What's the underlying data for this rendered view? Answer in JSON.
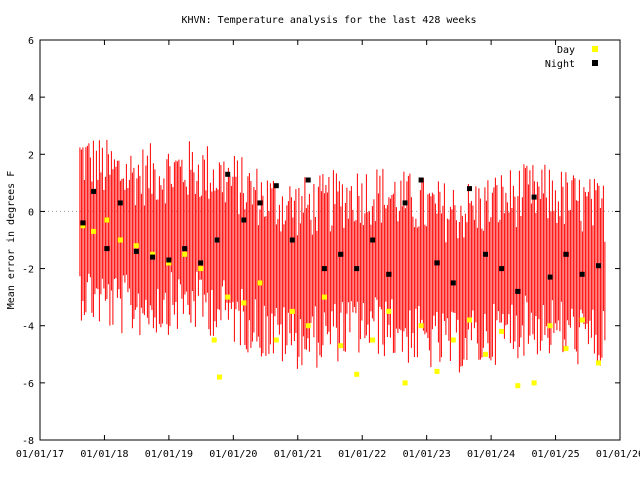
{
  "chart_data": {
    "type": "scatter",
    "title": "KHVN: Temperature analysis for the last 428 weeks",
    "xlabel": "",
    "ylabel": "Mean error in degrees F",
    "ylim": [
      -8,
      6
    ],
    "xlim": [
      "2017-01-01",
      "2026-01-01"
    ],
    "y_ticks": [
      "-8",
      "-6",
      "-4",
      "-2",
      "0",
      "2",
      "4",
      "6"
    ],
    "x_ticks": [
      "01/01/17",
      "01/01/18",
      "01/01/19",
      "01/01/20",
      "01/01/21",
      "01/01/22",
      "01/01/23",
      "01/01/24",
      "01/01/25",
      "01/01/26"
    ],
    "reference_line": {
      "y": 0,
      "style": "dotted",
      "color": "#a0a0a0"
    },
    "legend": {
      "position": "top-right",
      "entries": [
        "Day",
        "Night"
      ]
    },
    "error_bar_color": "#ff0000",
    "series": [
      {
        "name": "Day",
        "color": "#ffff00",
        "marker": "square",
        "points": [
          [
            "2017-09-01",
            -0.5
          ],
          [
            "2017-11-01",
            -0.7
          ],
          [
            "2018-01-15",
            -0.3
          ],
          [
            "2018-04-01",
            -1.0
          ],
          [
            "2018-07-01",
            -1.2
          ],
          [
            "2018-10-01",
            -1.5
          ],
          [
            "2019-01-01",
            -1.8
          ],
          [
            "2019-04-01",
            -1.5
          ],
          [
            "2019-07-01",
            -2.0
          ],
          [
            "2019-09-15",
            -4.5
          ],
          [
            "2019-10-15",
            -5.8
          ],
          [
            "2019-12-01",
            -3.0
          ],
          [
            "2020-03-01",
            -3.2
          ],
          [
            "2020-06-01",
            -2.5
          ],
          [
            "2020-09-01",
            -4.5
          ],
          [
            "2020-12-01",
            -3.5
          ],
          [
            "2021-03-01",
            -4.0
          ],
          [
            "2021-06-01",
            -3.0
          ],
          [
            "2021-09-01",
            -4.7
          ],
          [
            "2021-12-01",
            -5.7
          ],
          [
            "2022-03-01",
            -4.5
          ],
          [
            "2022-06-01",
            -3.5
          ],
          [
            "2022-09-01",
            -6.0
          ],
          [
            "2022-12-01",
            -4.0
          ],
          [
            "2023-03-01",
            -5.6
          ],
          [
            "2023-06-01",
            -4.5
          ],
          [
            "2023-09-01",
            -3.8
          ],
          [
            "2023-12-01",
            -5.0
          ],
          [
            "2024-03-01",
            -4.2
          ],
          [
            "2024-06-01",
            -6.1
          ],
          [
            "2024-09-01",
            -6.0
          ],
          [
            "2024-12-01",
            -4.0
          ],
          [
            "2025-03-01",
            -4.8
          ],
          [
            "2025-06-01",
            -3.8
          ],
          [
            "2025-09-01",
            -5.3
          ]
        ]
      },
      {
        "name": "Night",
        "color": "#000000",
        "marker": "square",
        "points": [
          [
            "2017-09-01",
            -0.4
          ],
          [
            "2017-11-01",
            0.7
          ],
          [
            "2018-01-15",
            -1.3
          ],
          [
            "2018-04-01",
            0.3
          ],
          [
            "2018-07-01",
            -1.4
          ],
          [
            "2018-10-01",
            -1.6
          ],
          [
            "2019-01-01",
            -1.7
          ],
          [
            "2019-04-01",
            -1.3
          ],
          [
            "2019-07-01",
            -1.8
          ],
          [
            "2019-10-01",
            -1.0
          ],
          [
            "2019-12-01",
            1.3
          ],
          [
            "2020-03-01",
            -0.3
          ],
          [
            "2020-06-01",
            0.3
          ],
          [
            "2020-09-01",
            0.9
          ],
          [
            "2020-12-01",
            -1.0
          ],
          [
            "2021-03-01",
            1.1
          ],
          [
            "2021-06-01",
            -2.0
          ],
          [
            "2021-09-01",
            -1.5
          ],
          [
            "2021-12-01",
            -2.0
          ],
          [
            "2022-03-01",
            -1.0
          ],
          [
            "2022-06-01",
            -2.2
          ],
          [
            "2022-09-01",
            0.3
          ],
          [
            "2022-12-01",
            1.1
          ],
          [
            "2023-03-01",
            -1.8
          ],
          [
            "2023-06-01",
            -2.5
          ],
          [
            "2023-09-01",
            0.8
          ],
          [
            "2023-12-01",
            -1.5
          ],
          [
            "2024-03-01",
            -2.0
          ],
          [
            "2024-06-01",
            -2.8
          ],
          [
            "2024-09-01",
            0.5
          ],
          [
            "2024-12-01",
            -2.3
          ],
          [
            "2025-03-01",
            -1.5
          ],
          [
            "2025-06-01",
            -2.2
          ],
          [
            "2025-09-01",
            -1.9
          ]
        ]
      }
    ]
  }
}
